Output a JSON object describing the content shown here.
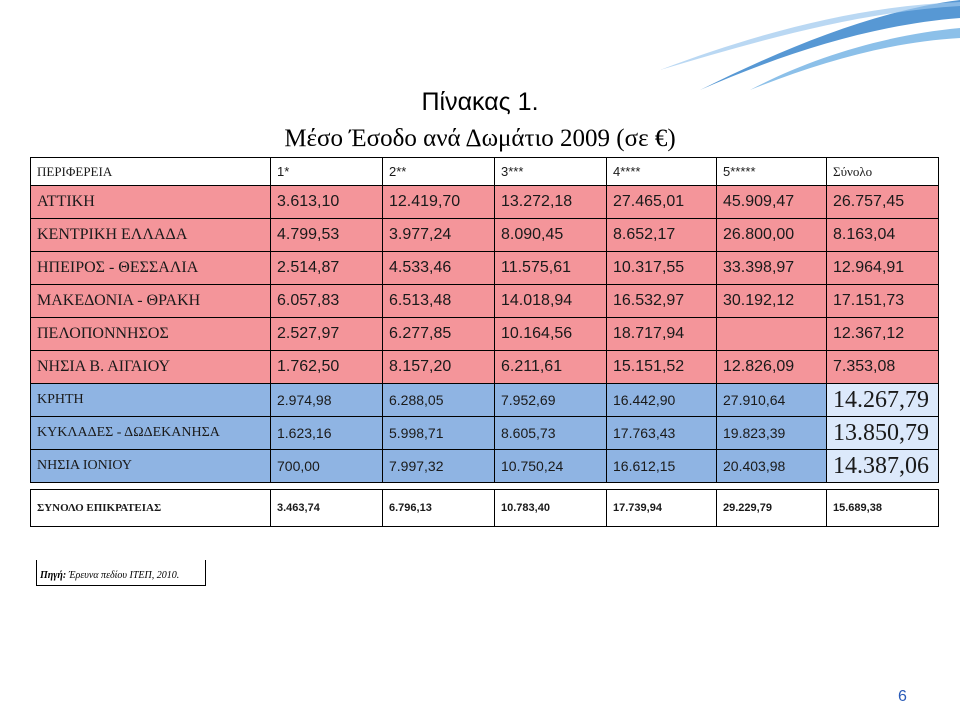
{
  "title": "Πίνακας 1.",
  "subtitle": "Μέσο Έσοδο ανά Δωμάτιο 2009 (σε €)",
  "headers": [
    "ΠΕΡΙΦΕΡΕΙΑ",
    "1*",
    "2**",
    "3***",
    "4****",
    "5*****",
    "Σύνολο"
  ],
  "rows": [
    {
      "region": "ΑΤΤΙΚΗ",
      "values": [
        "3.613,10",
        "12.419,70",
        "13.272,18",
        "27.465,01",
        "45.909,47",
        "26.757,45"
      ],
      "color": "pink"
    },
    {
      "region": "ΚΕΝΤΡΙΚΗ ΕΛΛΑΔΑ",
      "values": [
        "4.799,53",
        "3.977,24",
        "8.090,45",
        "8.652,17",
        "26.800,00",
        "8.163,04"
      ],
      "color": "pink"
    },
    {
      "region": "ΗΠΕΙΡΟΣ - ΘΕΣΣΑΛΙΑ",
      "values": [
        "2.514,87",
        "4.533,46",
        "11.575,61",
        "10.317,55",
        "33.398,97",
        "12.964,91"
      ],
      "color": "pink"
    },
    {
      "region": "ΜΑΚΕΔΟΝΙΑ - ΘΡΑΚΗ",
      "values": [
        "6.057,83",
        "6.513,48",
        "14.018,94",
        "16.532,97",
        "30.192,12",
        "17.151,73"
      ],
      "color": "pink"
    },
    {
      "region": "ΠΕΛΟΠΟΝΝΗΣΟΣ",
      "values": [
        "2.527,97",
        "6.277,85",
        "10.164,56",
        "18.717,94",
        "",
        "12.367,12"
      ],
      "color": "pink"
    },
    {
      "region": "ΝΗΣΙΑ Β. ΑΙΓΑΙΟΥ",
      "values": [
        "1.762,50",
        "8.157,20",
        "6.211,61",
        "15.151,52",
        "12.826,09",
        "7.353,08"
      ],
      "color": "pink"
    },
    {
      "region": "ΚΡΗΤΗ",
      "values": [
        "2.974,98",
        "6.288,05",
        "7.952,69",
        "16.442,90",
        "27.910,64",
        "14.267,79"
      ],
      "color": "blue"
    },
    {
      "region": "ΚΥΚΛΑΔΕΣ - ΔΩΔΕΚΑΝΗΣΑ",
      "values": [
        "1.623,16",
        "5.998,71",
        "8.605,73",
        "17.763,43",
        "19.823,39",
        "13.850,79"
      ],
      "color": "blue"
    },
    {
      "region": "ΝΗΣΙΑ ΙΟΝΙΟΥ",
      "values": [
        "700,00",
        "7.997,32",
        "10.750,24",
        "16.612,15",
        "20.403,98",
        "14.387,06"
      ],
      "color": "blue"
    }
  ],
  "summary": {
    "region": "ΣΥΝΟΛΟ ΕΠΙΚΡΑΤΕΙΑΣ",
    "values": [
      "3.463,74",
      "6.796,13",
      "10.783,40",
      "17.739,94",
      "29.229,79",
      "15.689,38"
    ]
  },
  "source": {
    "label": "Πηγή:",
    "text": "Έρευνα πεδίου ΙΤΕΠ, 2010."
  },
  "page_number": "6",
  "colors": {
    "pink": "#f4959a",
    "blue": "#8fb4e3",
    "highlight": "#dce9fb",
    "swoosh": "#3a86cc"
  }
}
